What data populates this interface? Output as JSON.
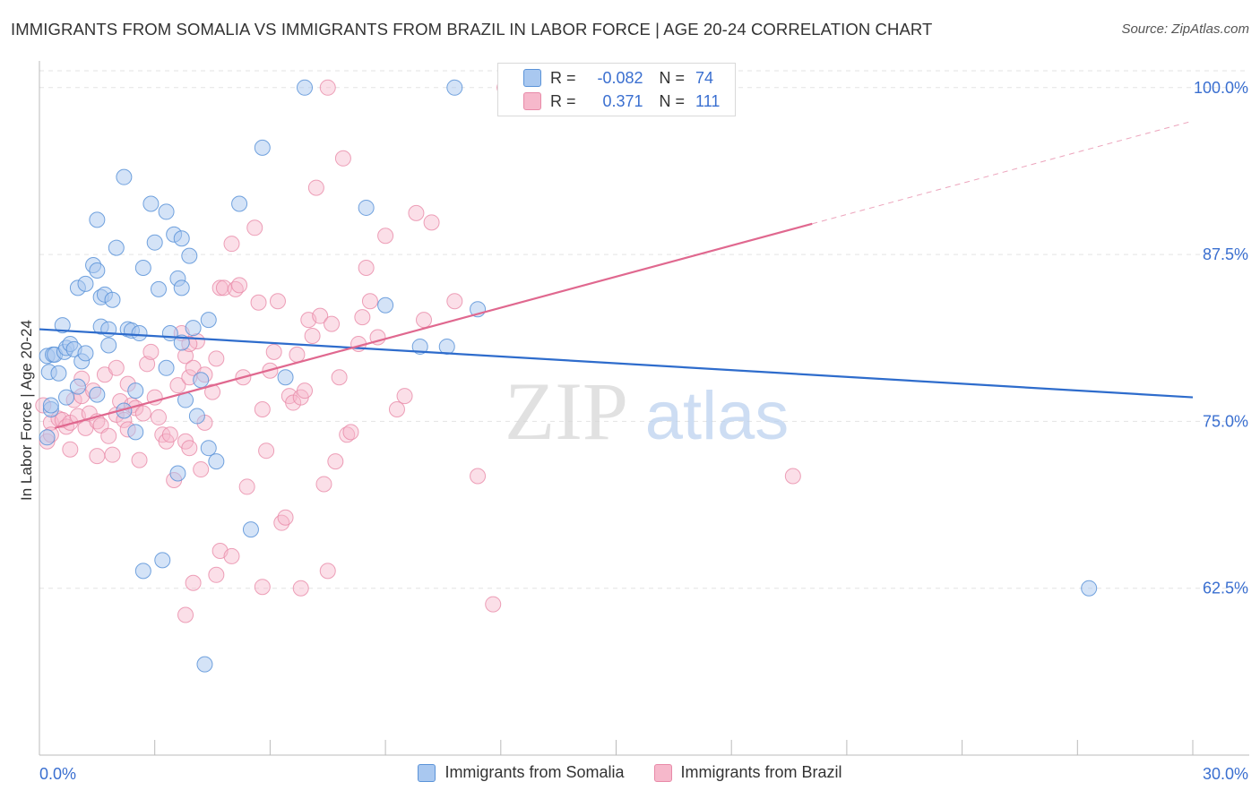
{
  "title": "IMMIGRANTS FROM SOMALIA VS IMMIGRANTS FROM BRAZIL IN LABOR FORCE | AGE 20-24 CORRELATION CHART",
  "source": "Source: ZipAtlas.com",
  "watermark": {
    "zip": "ZIP",
    "atlas": "atlas"
  },
  "legend": {
    "r_label": "R =",
    "n_label": "N =",
    "somalia": {
      "r": "-0.082",
      "n": "74"
    },
    "brazil": {
      "r": "0.371",
      "n": "111"
    }
  },
  "colors": {
    "somalia_fill": "#a9c8f0",
    "somalia_stroke": "#5b93d8",
    "somalia_line": "#2e6ccc",
    "brazil_fill": "#f6b8cb",
    "brazil_stroke": "#e88aa8",
    "brazil_line": "#e0688f",
    "tick_label": "#3a6fd0",
    "grid": "#e3e3e3"
  },
  "chart_data": {
    "type": "scatter",
    "title": "IMMIGRANTS FROM SOMALIA VS IMMIGRANTS FROM BRAZIL IN LABOR FORCE | AGE 20-24 CORRELATION CHART",
    "xlabel": "",
    "ylabel": "In Labor Force | Age 20-24",
    "xlim": [
      0,
      30
    ],
    "ylim": [
      50,
      102
    ],
    "x_tick_labels": [
      "0.0%",
      "30.0%"
    ],
    "y_ticks": [
      62.5,
      75.0,
      87.5,
      100.0
    ],
    "y_tick_labels": [
      "62.5%",
      "75.0%",
      "87.5%",
      "100.0%"
    ],
    "series": [
      {
        "name": "Immigrants from Somalia",
        "trend": {
          "x": [
            0,
            30
          ],
          "y": [
            81.9,
            76.8
          ]
        },
        "points": [
          [
            0.2,
            79.9
          ],
          [
            0.25,
            78.7
          ],
          [
            0.3,
            75.9
          ],
          [
            0.2,
            73.8
          ],
          [
            0.35,
            80.0
          ],
          [
            0.4,
            80.0
          ],
          [
            0.5,
            78.6
          ],
          [
            0.6,
            82.2
          ],
          [
            0.65,
            80.2
          ],
          [
            0.7,
            80.5
          ],
          [
            0.8,
            80.8
          ],
          [
            0.9,
            80.4
          ],
          [
            0.7,
            76.8
          ],
          [
            1.0,
            77.6
          ],
          [
            1.1,
            79.5
          ],
          [
            1.2,
            80.1
          ],
          [
            1.0,
            85.0
          ],
          [
            1.2,
            85.3
          ],
          [
            1.4,
            86.7
          ],
          [
            1.5,
            86.3
          ],
          [
            1.6,
            84.3
          ],
          [
            1.7,
            84.5
          ],
          [
            1.9,
            84.1
          ],
          [
            1.6,
            82.1
          ],
          [
            1.8,
            81.9
          ],
          [
            1.8,
            80.7
          ],
          [
            1.5,
            77.0
          ],
          [
            1.5,
            90.1
          ],
          [
            2.0,
            88.0
          ],
          [
            2.2,
            93.3
          ],
          [
            2.3,
            81.9
          ],
          [
            2.4,
            81.8
          ],
          [
            2.6,
            81.6
          ],
          [
            2.2,
            75.8
          ],
          [
            2.5,
            77.3
          ],
          [
            2.5,
            74.2
          ],
          [
            2.7,
            86.5
          ],
          [
            2.9,
            91.3
          ],
          [
            3.0,
            88.4
          ],
          [
            3.1,
            84.9
          ],
          [
            3.3,
            90.7
          ],
          [
            3.5,
            89.0
          ],
          [
            3.6,
            85.7
          ],
          [
            3.7,
            85.0
          ],
          [
            3.7,
            88.7
          ],
          [
            3.9,
            87.4
          ],
          [
            3.3,
            79.0
          ],
          [
            3.4,
            81.6
          ],
          [
            3.7,
            80.9
          ],
          [
            3.8,
            76.6
          ],
          [
            4.0,
            82.0
          ],
          [
            4.1,
            75.4
          ],
          [
            4.2,
            78.1
          ],
          [
            4.4,
            82.6
          ],
          [
            4.4,
            73.0
          ],
          [
            4.6,
            72.0
          ],
          [
            3.6,
            71.1
          ],
          [
            3.2,
            64.6
          ],
          [
            2.7,
            63.8
          ],
          [
            4.3,
            56.8
          ],
          [
            5.2,
            91.3
          ],
          [
            5.8,
            95.5
          ],
          [
            5.5,
            66.9
          ],
          [
            6.4,
            78.3
          ],
          [
            6.9,
            100.0
          ],
          [
            8.5,
            91.0
          ],
          [
            9.0,
            83.7
          ],
          [
            9.9,
            80.6
          ],
          [
            10.6,
            80.6
          ],
          [
            10.8,
            100.0
          ],
          [
            11.4,
            83.4
          ],
          [
            12.2,
            100.0
          ],
          [
            27.3,
            62.5
          ],
          [
            0.3,
            76.2
          ]
        ]
      },
      {
        "name": "Immigrants from Brazil",
        "trend": {
          "x": [
            0.4,
            20.1
          ],
          "y": [
            74.5,
            89.8
          ]
        },
        "trend_dashed": {
          "x": [
            20.1,
            30
          ],
          "y": [
            89.8,
            97.5
          ]
        },
        "points": [
          [
            0.1,
            76.2
          ],
          [
            0.2,
            73.5
          ],
          [
            0.3,
            74.9
          ],
          [
            0.5,
            75.2
          ],
          [
            0.6,
            75.1
          ],
          [
            0.7,
            74.6
          ],
          [
            0.8,
            74.9
          ],
          [
            0.9,
            76.6
          ],
          [
            1.0,
            75.4
          ],
          [
            1.1,
            76.9
          ],
          [
            1.2,
            74.5
          ],
          [
            1.3,
            75.6
          ],
          [
            1.4,
            77.3
          ],
          [
            1.5,
            75.0
          ],
          [
            1.6,
            74.7
          ],
          [
            1.7,
            78.5
          ],
          [
            1.8,
            73.9
          ],
          [
            1.9,
            72.5
          ],
          [
            2.0,
            75.5
          ],
          [
            2.1,
            76.5
          ],
          [
            2.2,
            75.1
          ],
          [
            2.3,
            74.4
          ],
          [
            2.4,
            76.2
          ],
          [
            2.5,
            76.0
          ],
          [
            2.6,
            72.1
          ],
          [
            2.7,
            75.6
          ],
          [
            2.8,
            79.3
          ],
          [
            2.9,
            80.2
          ],
          [
            3.0,
            76.8
          ],
          [
            3.1,
            75.3
          ],
          [
            3.2,
            74.0
          ],
          [
            3.3,
            73.5
          ],
          [
            3.4,
            74.0
          ],
          [
            3.5,
            70.6
          ],
          [
            3.6,
            77.7
          ],
          [
            3.7,
            81.6
          ],
          [
            3.8,
            79.9
          ],
          [
            3.9,
            78.3
          ],
          [
            4.0,
            79.0
          ],
          [
            4.1,
            81.0
          ],
          [
            3.8,
            73.5
          ],
          [
            3.9,
            73.0
          ],
          [
            4.2,
            71.4
          ],
          [
            4.3,
            74.9
          ],
          [
            4.5,
            77.2
          ],
          [
            4.6,
            79.7
          ],
          [
            4.7,
            85.0
          ],
          [
            4.8,
            85.0
          ],
          [
            5.0,
            88.3
          ],
          [
            5.1,
            84.9
          ],
          [
            5.2,
            85.2
          ],
          [
            5.3,
            78.3
          ],
          [
            5.4,
            70.1
          ],
          [
            5.6,
            89.5
          ],
          [
            5.7,
            83.9
          ],
          [
            5.8,
            75.9
          ],
          [
            5.9,
            72.8
          ],
          [
            6.0,
            78.8
          ],
          [
            6.1,
            80.2
          ],
          [
            6.2,
            84.0
          ],
          [
            6.3,
            67.4
          ],
          [
            6.4,
            67.8
          ],
          [
            6.5,
            76.9
          ],
          [
            6.6,
            76.4
          ],
          [
            6.7,
            80.0
          ],
          [
            6.8,
            76.8
          ],
          [
            6.9,
            77.3
          ],
          [
            7.0,
            82.6
          ],
          [
            7.1,
            81.4
          ],
          [
            7.2,
            92.5
          ],
          [
            7.3,
            82.9
          ],
          [
            7.4,
            70.3
          ],
          [
            7.5,
            100.0
          ],
          [
            7.6,
            82.3
          ],
          [
            7.7,
            72.0
          ],
          [
            7.8,
            78.3
          ],
          [
            7.9,
            94.7
          ],
          [
            8.0,
            74.0
          ],
          [
            8.1,
            74.2
          ],
          [
            8.3,
            80.8
          ],
          [
            8.4,
            82.8
          ],
          [
            8.5,
            86.5
          ],
          [
            8.6,
            84.0
          ],
          [
            8.8,
            81.3
          ],
          [
            9.0,
            88.9
          ],
          [
            9.3,
            75.9
          ],
          [
            9.5,
            76.9
          ],
          [
            9.8,
            90.6
          ],
          [
            10.0,
            82.6
          ],
          [
            10.2,
            89.9
          ],
          [
            10.8,
            84.0
          ],
          [
            11.4,
            70.9
          ],
          [
            11.8,
            61.3
          ],
          [
            12.1,
            100.0
          ],
          [
            4.6,
            63.5
          ],
          [
            3.8,
            60.5
          ],
          [
            4.0,
            62.9
          ],
          [
            4.7,
            65.3
          ],
          [
            5.8,
            62.6
          ],
          [
            6.8,
            62.5
          ],
          [
            7.5,
            63.8
          ],
          [
            5.0,
            64.9
          ],
          [
            4.3,
            78.5
          ],
          [
            3.9,
            80.8
          ],
          [
            2.3,
            77.8
          ],
          [
            1.5,
            72.4
          ],
          [
            0.3,
            74.0
          ],
          [
            0.8,
            72.9
          ],
          [
            1.1,
            78.2
          ],
          [
            2.0,
            79.0
          ],
          [
            19.6,
            70.9
          ]
        ]
      }
    ]
  },
  "bottom_legend": {
    "somalia": "Immigrants from Somalia",
    "brazil": "Immigrants from Brazil"
  }
}
